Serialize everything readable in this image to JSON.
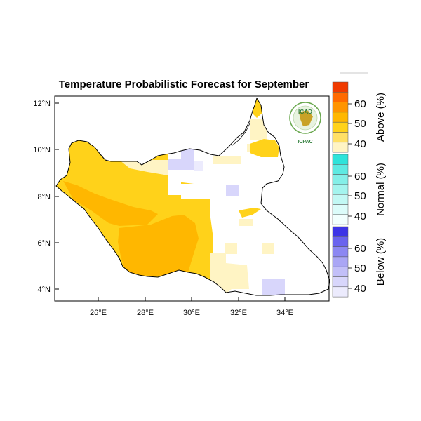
{
  "title": "Temperature Probabilistic Forecast for September",
  "axes": {
    "y_ticks": [
      "12°N",
      "10°N",
      "8°N",
      "6°N",
      "4°N"
    ],
    "x_ticks": [
      "26°E",
      "28°E",
      "30°E",
      "32°E",
      "34°E"
    ]
  },
  "colorbars": [
    {
      "label": "Above (%)",
      "ticks": [
        "40",
        "50",
        "60"
      ],
      "colors": [
        "#fff4c4",
        "#ffe066",
        "#ffd21a",
        "#ffb700",
        "#ff9400",
        "#ff6a00",
        "#f03a00"
      ]
    },
    {
      "label": "Normal (%)",
      "ticks": [
        "40",
        "50",
        "60"
      ],
      "colors": [
        "#f2fffe",
        "#dcfcfa",
        "#c2f8f4",
        "#a4f4ee",
        "#84efe8",
        "#5eeae2",
        "#2ee3da"
      ]
    },
    {
      "label": "Below (%)",
      "ticks": [
        "40",
        "50",
        "60"
      ],
      "colors": [
        "#ecebfd",
        "#d8d6fb",
        "#c2bff8",
        "#aaa6f5",
        "#8c87f2",
        "#6a63ee",
        "#3d34e6"
      ]
    }
  ],
  "logo": {
    "name": "IGAD",
    "sub": "ICPAC"
  },
  "colors": {
    "above_light": "#fff4c4",
    "above_main": "#ffd21a",
    "above_dark": "#ffb700",
    "below_light": "#d8d6fb",
    "border": "#000000"
  }
}
